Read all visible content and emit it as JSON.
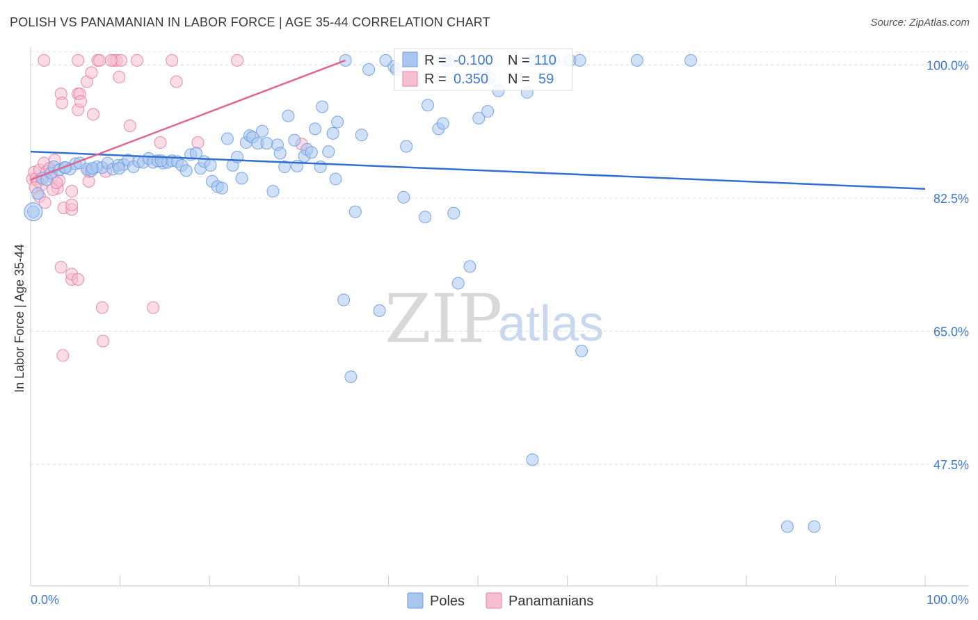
{
  "header": {
    "title": "POLISH VS PANAMANIAN IN LABOR FORCE | AGE 35-44 CORRELATION CHART",
    "source": "Source: ZipAtlas.com"
  },
  "watermark": {
    "zip": "ZIP",
    "atlas": "atlas"
  },
  "chart_data": {
    "type": "scatter",
    "title": "POLISH VS PANAMANIAN IN LABOR FORCE | AGE 35-44 CORRELATION CHART",
    "xlabel": "",
    "ylabel": "In Labor Force | Age 35-44",
    "xlim": [
      0,
      100
    ],
    "ylim": [
      31.5,
      101.5
    ],
    "x_tick_labels": {
      "left": "0.0%",
      "right": "100.0%"
    },
    "y_ticks": [
      {
        "value": 100,
        "label": "100.0%"
      },
      {
        "value": 82.5,
        "label": "82.5%"
      },
      {
        "value": 65,
        "label": "65.0%"
      },
      {
        "value": 47.5,
        "label": "47.5%"
      }
    ],
    "colors": {
      "poles": "#6b9be3",
      "poles_fill": "#a8c6f0",
      "panamanians": "#e77fa3",
      "panamanians_fill": "#f5bfd1"
    },
    "legend_box": {
      "rows": [
        {
          "series": "Poles",
          "r_label": "R =",
          "r_value": "-0.100",
          "n_label": "N =",
          "n_value": "110"
        },
        {
          "series": "Panamanians",
          "r_label": "R =",
          "r_value": "0.350",
          "n_label": "N =",
          "n_value": "59"
        }
      ]
    },
    "legend_bottom": [
      "Poles",
      "Panamanians"
    ],
    "series": [
      {
        "name": "Poles",
        "trend": {
          "x0": 0,
          "y0": 88.6,
          "x1": 100,
          "y1": 83.7
        },
        "points": [
          [
            0.3,
            80.7
          ],
          [
            0.8,
            83.1
          ],
          [
            1.3,
            85.1
          ],
          [
            1.8,
            84.9
          ],
          [
            2.3,
            85.8
          ],
          [
            2.6,
            86.6
          ],
          [
            3.2,
            86.2
          ],
          [
            3.8,
            86.5
          ],
          [
            4.4,
            86.3
          ],
          [
            5.0,
            87.0
          ],
          [
            5.5,
            87.1
          ],
          [
            6.3,
            86.3
          ],
          [
            6.8,
            86.1
          ],
          [
            7.4,
            86.6
          ],
          [
            8.0,
            86.5
          ],
          [
            8.6,
            87.1
          ],
          [
            9.2,
            86.3
          ],
          [
            9.8,
            86.8
          ],
          [
            10.4,
            86.9
          ],
          [
            10.9,
            87.5
          ],
          [
            11.5,
            86.6
          ],
          [
            12.1,
            87.3
          ],
          [
            12.6,
            87.2
          ],
          [
            13.2,
            87.7
          ],
          [
            13.7,
            87.2
          ],
          [
            14.2,
            87.4
          ],
          [
            14.8,
            87.1
          ],
          [
            15.3,
            87.2
          ],
          [
            15.8,
            87.4
          ],
          [
            16.4,
            87.3
          ],
          [
            16.9,
            86.8
          ],
          [
            17.4,
            86.1
          ],
          [
            17.9,
            88.2
          ],
          [
            18.5,
            88.4
          ],
          [
            19.0,
            86.4
          ],
          [
            19.4,
            87.3
          ],
          [
            20.1,
            86.8
          ],
          [
            20.3,
            84.7
          ],
          [
            20.9,
            84.0
          ],
          [
            21.4,
            83.8
          ],
          [
            22.0,
            90.3
          ],
          [
            22.6,
            86.8
          ],
          [
            23.1,
            87.9
          ],
          [
            23.6,
            85.1
          ],
          [
            24.1,
            89.8
          ],
          [
            24.5,
            90.7
          ],
          [
            24.8,
            90.5
          ],
          [
            25.4,
            89.7
          ],
          [
            25.9,
            91.3
          ],
          [
            26.4,
            89.7
          ],
          [
            27.1,
            83.4
          ],
          [
            27.6,
            89.5
          ],
          [
            27.9,
            88.4
          ],
          [
            28.4,
            86.6
          ],
          [
            28.8,
            93.3
          ],
          [
            29.5,
            90.1
          ],
          [
            29.8,
            86.7
          ],
          [
            30.6,
            88.0
          ],
          [
            30.9,
            88.9
          ],
          [
            31.4,
            88.5
          ],
          [
            31.8,
            91.6
          ],
          [
            32.4,
            86.6
          ],
          [
            32.6,
            94.5
          ],
          [
            33.3,
            88.6
          ],
          [
            33.8,
            91.0
          ],
          [
            34.1,
            85.0
          ],
          [
            34.3,
            92.5
          ],
          [
            35.0,
            69.1
          ],
          [
            35.2,
            100.6
          ],
          [
            35.8,
            59.0
          ],
          [
            36.3,
            80.7
          ],
          [
            37.0,
            90.8
          ],
          [
            37.8,
            99.4
          ],
          [
            39.0,
            67.7
          ],
          [
            40.6,
            99.8
          ],
          [
            40.9,
            99.4
          ],
          [
            41.7,
            82.6
          ],
          [
            42.0,
            89.3
          ],
          [
            44.1,
            80.0
          ],
          [
            44.4,
            94.7
          ],
          [
            45.6,
            91.6
          ],
          [
            46.1,
            92.3
          ],
          [
            46.3,
            100.6
          ],
          [
            47.3,
            80.5
          ],
          [
            47.8,
            71.3
          ],
          [
            49.1,
            73.5
          ],
          [
            50.1,
            93.0
          ],
          [
            50.6,
            99.5
          ],
          [
            51.1,
            93.9
          ],
          [
            51.3,
            98.3
          ],
          [
            52.3,
            96.6
          ],
          [
            55.5,
            96.4
          ],
          [
            56.0,
            100.6
          ],
          [
            58.5,
            100.6
          ],
          [
            60.3,
            100.6
          ],
          [
            61.4,
            100.6
          ],
          [
            61.6,
            62.4
          ],
          [
            67.8,
            100.6
          ],
          [
            73.8,
            100.6
          ],
          [
            56.1,
            48.1
          ],
          [
            84.6,
            39.3
          ],
          [
            87.6,
            39.3
          ],
          [
            58.0,
            100.6
          ],
          [
            39.7,
            100.6
          ],
          [
            57.4,
            100.6
          ],
          [
            46.7,
            100.6
          ],
          [
            14.6,
            87.4
          ],
          [
            9.9,
            86.4
          ],
          [
            6.9,
            86.4
          ],
          [
            3.9,
            86.5
          ]
        ]
      },
      {
        "name": "Panamanians",
        "trend": {
          "x0": 0,
          "y0": 84.9,
          "x1": 35.2,
          "y1": 100.6
        },
        "points": [
          [
            0.2,
            85.0
          ],
          [
            0.4,
            85.9
          ],
          [
            0.6,
            85.0
          ],
          [
            0.8,
            84.7
          ],
          [
            1.0,
            86.2
          ],
          [
            1.2,
            84.2
          ],
          [
            1.5,
            87.1
          ],
          [
            1.8,
            86.0
          ],
          [
            2.1,
            86.4
          ],
          [
            2.4,
            85.3
          ],
          [
            2.7,
            87.5
          ],
          [
            3.0,
            83.8
          ],
          [
            3.2,
            84.8
          ],
          [
            0.5,
            83.9
          ],
          [
            1.0,
            82.7
          ],
          [
            1.6,
            81.9
          ],
          [
            2.5,
            83.6
          ],
          [
            2.9,
            84.5
          ],
          [
            3.7,
            81.2
          ],
          [
            3.4,
            96.2
          ],
          [
            3.5,
            95.0
          ],
          [
            3.4,
            73.4
          ],
          [
            4.6,
            71.8
          ],
          [
            4.6,
            72.5
          ],
          [
            3.6,
            61.8
          ],
          [
            4.6,
            81.0
          ],
          [
            4.6,
            81.6
          ],
          [
            4.6,
            83.4
          ],
          [
            5.3,
            71.8
          ],
          [
            5.3,
            94.1
          ],
          [
            5.3,
            96.2
          ],
          [
            5.3,
            100.6
          ],
          [
            5.5,
            96.2
          ],
          [
            5.6,
            95.2
          ],
          [
            6.3,
            97.8
          ],
          [
            6.8,
            99.0
          ],
          [
            7.0,
            93.5
          ],
          [
            6.5,
            84.7
          ],
          [
            6.5,
            86.0
          ],
          [
            7.5,
            100.6
          ],
          [
            7.7,
            100.6
          ],
          [
            8.0,
            68.1
          ],
          [
            8.1,
            63.7
          ],
          [
            8.4,
            86.0
          ],
          [
            9.3,
            100.6
          ],
          [
            9.6,
            100.6
          ],
          [
            9.9,
            98.4
          ],
          [
            10.1,
            100.6
          ],
          [
            11.1,
            92.0
          ],
          [
            11.9,
            100.6
          ],
          [
            13.7,
            68.1
          ],
          [
            14.5,
            89.8
          ],
          [
            15.8,
            100.6
          ],
          [
            16.3,
            97.8
          ],
          [
            18.7,
            89.8
          ],
          [
            23.1,
            100.6
          ],
          [
            30.3,
            89.6
          ],
          [
            9.0,
            100.6
          ],
          [
            1.5,
            100.6
          ]
        ]
      }
    ]
  }
}
